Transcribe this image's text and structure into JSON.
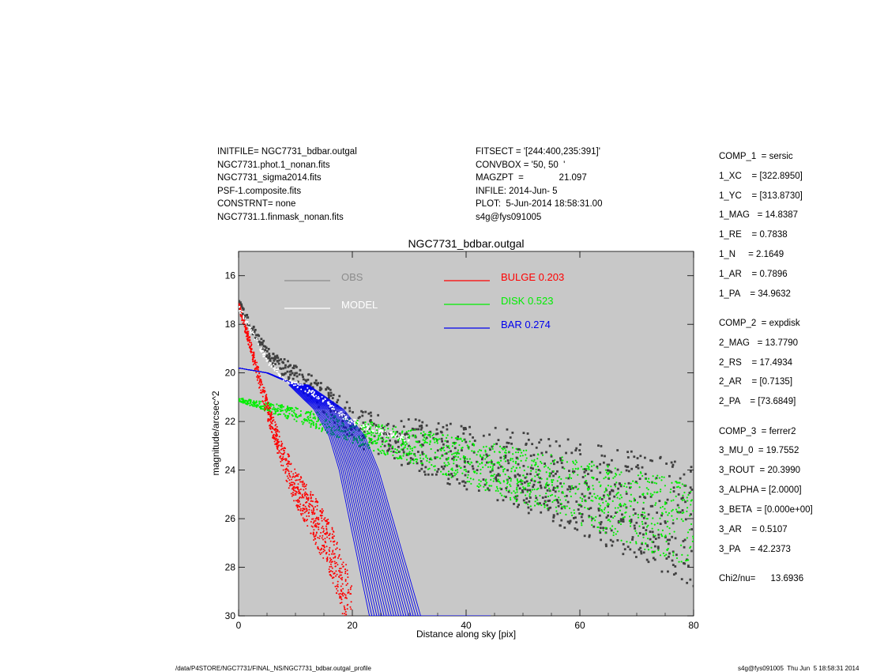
{
  "header": {
    "left": [
      "INITFILE= NGC7731_bdbar.outgal",
      "NGC7731.phot.1_nonan.fits",
      "NGC7731_sigma2014.fits",
      "PSF-1.composite.fits",
      "CONSTRNT= none",
      "NGC7731.1.finmask_nonan.fits"
    ],
    "right": [
      "FITSECT = '[244:400,235:391]'",
      "CONVBOX = '50, 50  '",
      "MAGZPT  =              21.097",
      "INFILE: 2014-Jun- 5",
      "PLOT:  5-Jun-2014 18:58:31.00",
      "s4g@fys091005"
    ]
  },
  "params": {
    "comp1": [
      "COMP_1  = sersic",
      "1_XC    = [322.8950]",
      "1_YC    = [313.8730]",
      "1_MAG   = 14.8387",
      "1_RE    = 0.7838",
      "1_N     = 2.1649",
      "1_AR    = 0.7896",
      "1_PA    = 34.9632"
    ],
    "comp2": [
      "COMP_2  = expdisk",
      "2_MAG   = 13.7790",
      "2_RS    = 17.4934",
      "2_AR    = [0.7135]",
      "2_PA    = [73.6849]"
    ],
    "comp3": [
      "COMP_3  = ferrer2",
      "3_MU_0  = 19.7552",
      "3_ROUT  = 20.3990",
      "3_ALPHA = [2.0000]",
      "3_BETA  = [0.000e+00]",
      "3_AR    = 0.5107",
      "3_PA    = 42.2373"
    ],
    "chi2": "Chi2/nu=      13.6936"
  },
  "footer": {
    "left": "/data/P4STORE/NGC7731/FINAL_NS/NGC7731_bdbar.outgal_profile",
    "right": "s4g@fys091005  Thu Jun  5 18:58:31 2014"
  },
  "chart_data": {
    "type": "scatter",
    "title": "NGC7731_bdbar.outgal",
    "xlabel": "Distance along sky [pix]",
    "ylabel": "magnitude/arcsec^2",
    "xlim": [
      0,
      80
    ],
    "ylim": [
      30,
      15
    ],
    "y_inverted": true,
    "xticks": [
      "0",
      "20",
      "40",
      "60",
      "80"
    ],
    "yticks": [
      "16",
      "18",
      "20",
      "22",
      "24",
      "26",
      "28",
      "30"
    ],
    "background": "#c8c8c8",
    "legend_placement": "top",
    "legend": [
      {
        "label": "OBS",
        "color": "#8c8c8c"
      },
      {
        "label": "MODEL",
        "color": "#ffffff"
      },
      {
        "label": "BULGE  0.203",
        "color": "#ff0000"
      },
      {
        "label": "DISK  0.523",
        "color": "#00ee00"
      },
      {
        "label": "BAR  0.274",
        "color": "#0000ee"
      }
    ],
    "series": [
      {
        "name": "OBS",
        "color": "#404040",
        "points": [
          [
            0,
            17.1
          ],
          [
            3,
            18.4
          ],
          [
            6,
            19.5
          ],
          [
            9,
            19.9
          ],
          [
            12,
            20.4
          ],
          [
            15,
            21.0
          ],
          [
            18,
            21.6
          ],
          [
            22,
            22.3
          ],
          [
            26,
            22.6
          ],
          [
            30,
            22.8
          ],
          [
            35,
            23.1
          ],
          [
            40,
            23.4
          ],
          [
            45,
            23.6
          ],
          [
            50,
            23.9
          ],
          [
            55,
            24.2
          ],
          [
            60,
            24.6
          ],
          [
            65,
            24.9
          ],
          [
            70,
            25.3
          ],
          [
            75,
            25.6
          ],
          [
            80,
            26.0
          ]
        ]
      },
      {
        "name": "MODEL",
        "color": "#ffffff",
        "points": [
          [
            0,
            17.3
          ],
          [
            3,
            18.6
          ],
          [
            5,
            19.5
          ],
          [
            8,
            20.2
          ],
          [
            12,
            20.7
          ],
          [
            16,
            21.3
          ],
          [
            19,
            21.9
          ],
          [
            22,
            22.2
          ],
          [
            26,
            22.5
          ],
          [
            30,
            22.7
          ]
        ]
      },
      {
        "name": "BULGE",
        "color": "#ff0000",
        "points": [
          [
            0,
            17.2
          ],
          [
            2,
            18.8
          ],
          [
            4,
            20.6
          ],
          [
            6,
            22.2
          ],
          [
            8,
            23.6
          ],
          [
            10,
            24.7
          ],
          [
            12,
            25.5
          ],
          [
            14,
            26.3
          ],
          [
            16,
            27.2
          ],
          [
            18,
            28.5
          ],
          [
            20,
            30.0
          ]
        ]
      },
      {
        "name": "DISK",
        "color": "#00ee00",
        "points": [
          [
            0,
            21.1
          ],
          [
            10,
            21.7
          ],
          [
            20,
            22.4
          ],
          [
            30,
            23.0
          ],
          [
            40,
            23.6
          ],
          [
            50,
            24.3
          ],
          [
            60,
            24.9
          ],
          [
            70,
            25.6
          ],
          [
            80,
            26.3
          ]
        ]
      },
      {
        "name": "BAR",
        "color": "#0000ee",
        "points": [
          [
            0,
            19.8
          ],
          [
            5,
            20.0
          ],
          [
            10,
            20.5
          ],
          [
            15,
            21.5
          ],
          [
            18,
            22.6
          ],
          [
            20,
            24.0
          ],
          [
            22,
            26.0
          ],
          [
            24,
            28.0
          ],
          [
            26,
            30.0
          ]
        ]
      }
    ]
  }
}
